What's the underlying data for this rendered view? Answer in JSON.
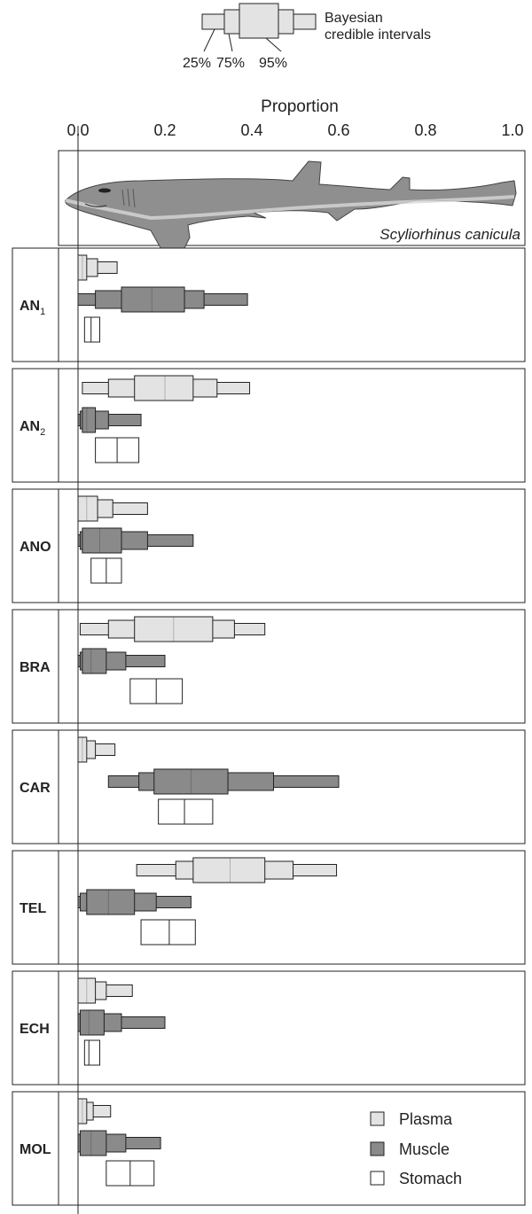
{
  "chart_data": {
    "type": "box",
    "key": {
      "title": "Bayesian credible intervals",
      "title_lines": [
        "Bayesian",
        "credible intervals"
      ],
      "labels": [
        "25%",
        "75%",
        "95%"
      ]
    },
    "axis": {
      "label": "Proportion",
      "ticks": [
        "0.0",
        "0.2",
        "0.4",
        "0.6",
        "0.8",
        "1.0"
      ],
      "tick_values": [
        0,
        0.2,
        0.4,
        0.6,
        0.8,
        1.0
      ],
      "range": [
        0,
        1
      ],
      "position": "top"
    },
    "species_label": "Scyliorhinus canicula",
    "legend": {
      "items": [
        {
          "label": "Plasma",
          "color": "#e3e3e3"
        },
        {
          "label": "Muscle",
          "color": "#8a8a8a"
        },
        {
          "label": "Stomach",
          "color": "#ffffff"
        }
      ],
      "placement": "bottom-right"
    },
    "colors": {
      "Plasma": "#e3e3e3",
      "Muscle": "#8a8a8a",
      "Stomach": "#ffffff",
      "stroke": "#222222"
    },
    "panels": [
      {
        "label": "AN",
        "sub": "1",
        "plasma": {
          "lo95": 0.0,
          "lo75": 0.0,
          "lo25": 0.0,
          "med": 0.01,
          "hi25": 0.02,
          "hi75": 0.045,
          "hi95": 0.09
        },
        "muscle": {
          "lo95": 0.0,
          "lo75": 0.04,
          "lo25": 0.1,
          "med": 0.17,
          "hi25": 0.245,
          "hi75": 0.29,
          "hi95": 0.39
        },
        "stomach": {
          "lo": 0.015,
          "med": 0.03,
          "hi": 0.05
        }
      },
      {
        "label": "AN",
        "sub": "2",
        "plasma": {
          "lo95": 0.01,
          "lo75": 0.07,
          "lo25": 0.13,
          "med": 0.2,
          "hi25": 0.265,
          "hi75": 0.32,
          "hi95": 0.395
        },
        "muscle": {
          "lo95": 0.0,
          "lo75": 0.005,
          "lo25": 0.01,
          "med": 0.02,
          "hi25": 0.04,
          "hi75": 0.07,
          "hi95": 0.145
        },
        "stomach": {
          "lo": 0.04,
          "med": 0.09,
          "hi": 0.14
        }
      },
      {
        "label": "ANO",
        "sub": "",
        "plasma": {
          "lo95": 0.0,
          "lo75": 0.0,
          "lo25": 0.0,
          "med": 0.02,
          "hi25": 0.045,
          "hi75": 0.08,
          "hi95": 0.16
        },
        "muscle": {
          "lo95": 0.0,
          "lo75": 0.005,
          "lo25": 0.01,
          "med": 0.05,
          "hi25": 0.1,
          "hi75": 0.16,
          "hi95": 0.265
        },
        "stomach": {
          "lo": 0.03,
          "med": 0.065,
          "hi": 0.1
        }
      },
      {
        "label": "BRA",
        "sub": "",
        "plasma": {
          "lo95": 0.005,
          "lo75": 0.07,
          "lo25": 0.13,
          "med": 0.22,
          "hi25": 0.31,
          "hi75": 0.36,
          "hi95": 0.43
        },
        "muscle": {
          "lo95": 0.0,
          "lo75": 0.005,
          "lo25": 0.01,
          "med": 0.03,
          "hi25": 0.065,
          "hi75": 0.11,
          "hi95": 0.2
        },
        "stomach": {
          "lo": 0.12,
          "med": 0.18,
          "hi": 0.24
        }
      },
      {
        "label": "CAR",
        "sub": "",
        "plasma": {
          "lo95": 0.0,
          "lo75": 0.0,
          "lo25": 0.0,
          "med": 0.01,
          "hi25": 0.02,
          "hi75": 0.04,
          "hi95": 0.085
        },
        "muscle": {
          "lo95": 0.07,
          "lo75": 0.14,
          "lo25": 0.175,
          "med": 0.26,
          "hi25": 0.345,
          "hi75": 0.45,
          "hi95": 0.6
        },
        "stomach": {
          "lo": 0.185,
          "med": 0.245,
          "hi": 0.31
        }
      },
      {
        "label": "TEL",
        "sub": "",
        "plasma": {
          "lo95": 0.135,
          "lo75": 0.225,
          "lo25": 0.265,
          "med": 0.35,
          "hi25": 0.43,
          "hi75": 0.495,
          "hi95": 0.595
        },
        "muscle": {
          "lo95": 0.0,
          "lo75": 0.005,
          "lo25": 0.02,
          "med": 0.07,
          "hi25": 0.13,
          "hi75": 0.18,
          "hi95": 0.26
        },
        "stomach": {
          "lo": 0.145,
          "med": 0.21,
          "hi": 0.27
        }
      },
      {
        "label": "ECH",
        "sub": "",
        "plasma": {
          "lo95": 0.0,
          "lo75": 0.0,
          "lo25": 0.0,
          "med": 0.02,
          "hi25": 0.04,
          "hi75": 0.065,
          "hi95": 0.125
        },
        "muscle": {
          "lo95": 0.0,
          "lo75": 0.0,
          "lo25": 0.005,
          "med": 0.025,
          "hi25": 0.06,
          "hi75": 0.1,
          "hi95": 0.2
        },
        "stomach": {
          "lo": 0.015,
          "med": 0.025,
          "hi": 0.05
        }
      },
      {
        "label": "MOL",
        "sub": "",
        "plasma": {
          "lo95": 0.0,
          "lo75": 0.0,
          "lo25": 0.0,
          "med": 0.01,
          "hi25": 0.02,
          "hi75": 0.035,
          "hi95": 0.075
        },
        "muscle": {
          "lo95": 0.0,
          "lo75": 0.0,
          "lo25": 0.005,
          "med": 0.03,
          "hi25": 0.065,
          "hi75": 0.11,
          "hi95": 0.19
        },
        "stomach": {
          "lo": 0.065,
          "med": 0.12,
          "hi": 0.175
        }
      }
    ]
  }
}
